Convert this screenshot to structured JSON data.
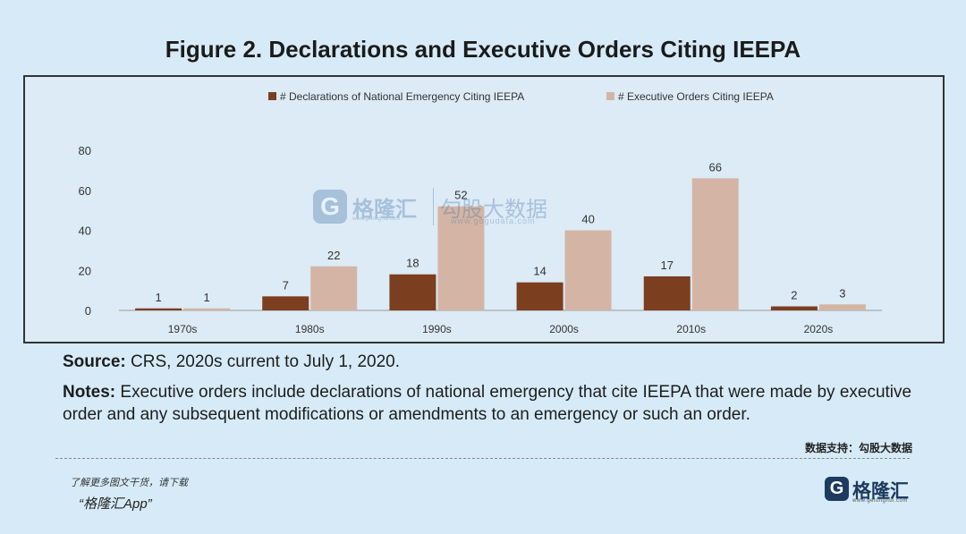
{
  "figure": {
    "title": "Figure 2. Declarations and Executive Orders Citing IEEPA",
    "source_label": "Source:",
    "source_text": " CRS, 2020s current to July 1, 2020.",
    "notes_label": "Notes:",
    "notes_text": " Executive orders include declarations of national emergency that cite IEEPA that were made by executive order and any subsequent modifications or amendments to an emergency or such an order."
  },
  "footer": {
    "data_support": "数据支持：勾股大数据",
    "download_line": "了解更多图文干货，请下载",
    "app_name": "“格隆汇App”",
    "logo_mark": "G",
    "logo_text": "格隆汇",
    "logo_url": "www.gelonghui.com"
  },
  "watermark": {
    "brand_a": "格隆汇",
    "brand_a_url": "www.gelonghui.com",
    "brand_b": "勾股大数据",
    "brand_b_url": "www.gogudata.com"
  },
  "colors": {
    "declarations": "#7b3e1e",
    "executive_orders": "#d4b5a5",
    "axis": "#9a9a9a",
    "text": "#333333"
  },
  "chart_data": {
    "type": "bar",
    "title": "Figure 2. Declarations and Executive Orders Citing IEEPA",
    "categories": [
      "1970s",
      "1980s",
      "1990s",
      "2000s",
      "2010s",
      "2020s"
    ],
    "series": [
      {
        "name": "# Declarations of National Emergency Citing IEEPA",
        "values": [
          1,
          7,
          18,
          14,
          17,
          2
        ]
      },
      {
        "name": "# Executive Orders Citing IEEPA",
        "values": [
          1,
          22,
          52,
          40,
          66,
          3
        ]
      }
    ],
    "ylim": [
      0,
      80
    ],
    "yticks": [
      0,
      20,
      40,
      60,
      80
    ],
    "grid": false,
    "legend": "top-center",
    "data_labels": true
  }
}
